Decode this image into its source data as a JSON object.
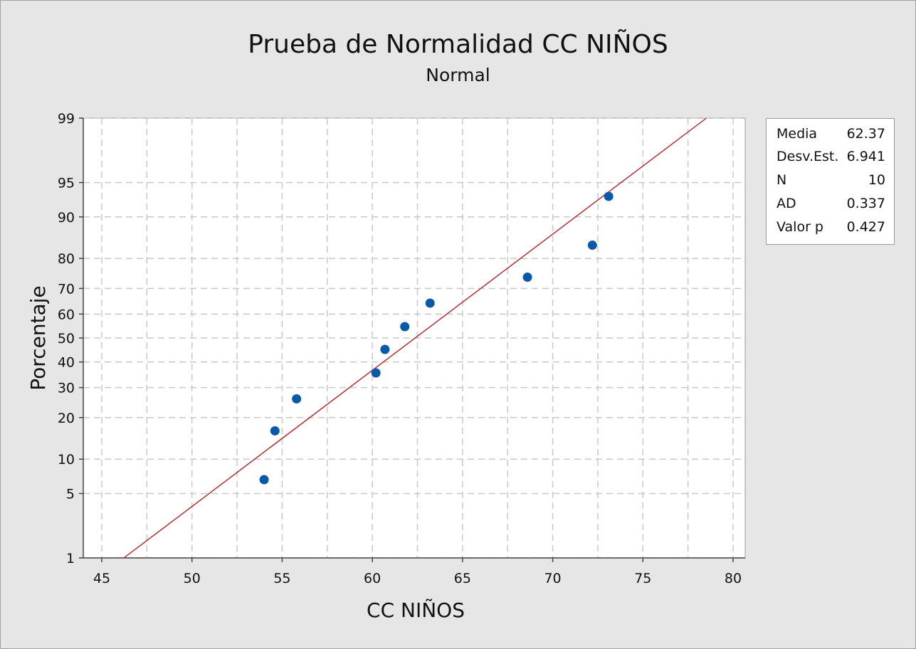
{
  "chart_data": {
    "type": "scatter",
    "title": "Prueba de Normalidad CC NIÑOS",
    "subtitle": "Normal",
    "xlabel": "CC NIÑOS",
    "ylabel": "Porcentaje",
    "xlim": [
      45,
      80
    ],
    "x_ticks": [
      "45",
      "50",
      "55",
      "60",
      "65",
      "70",
      "75",
      "80"
    ],
    "y_scale": "normal probability",
    "y_ticks": [
      "1",
      "5",
      "10",
      "20",
      "30",
      "40",
      "50",
      "60",
      "70",
      "80",
      "90",
      "95",
      "99"
    ],
    "grid": true,
    "points": [
      {
        "x": 54.0,
        "y": 6.7
      },
      {
        "x": 54.6,
        "y": 16.3
      },
      {
        "x": 55.8,
        "y": 26.0
      },
      {
        "x": 60.2,
        "y": 35.6
      },
      {
        "x": 60.7,
        "y": 45.2
      },
      {
        "x": 61.8,
        "y": 54.8
      },
      {
        "x": 63.2,
        "y": 64.4
      },
      {
        "x": 68.6,
        "y": 74.0
      },
      {
        "x": 72.2,
        "y": 83.7
      },
      {
        "x": 73.1,
        "y": 93.3
      }
    ],
    "fit_line": {
      "mean": 62.37,
      "stdev": 6.941
    },
    "colors": {
      "points": "#0a58a8",
      "fit_line": "#b22222",
      "grid": "#c8c8c8",
      "background": "#e6e6e6"
    }
  },
  "legend": {
    "rows": [
      {
        "label": "Media",
        "value": "62.37"
      },
      {
        "label": "Desv.Est.",
        "value": "6.941"
      },
      {
        "label": "N",
        "value": "10"
      },
      {
        "label": "AD",
        "value": "0.337"
      },
      {
        "label": "Valor p",
        "value": "0.427"
      }
    ]
  }
}
